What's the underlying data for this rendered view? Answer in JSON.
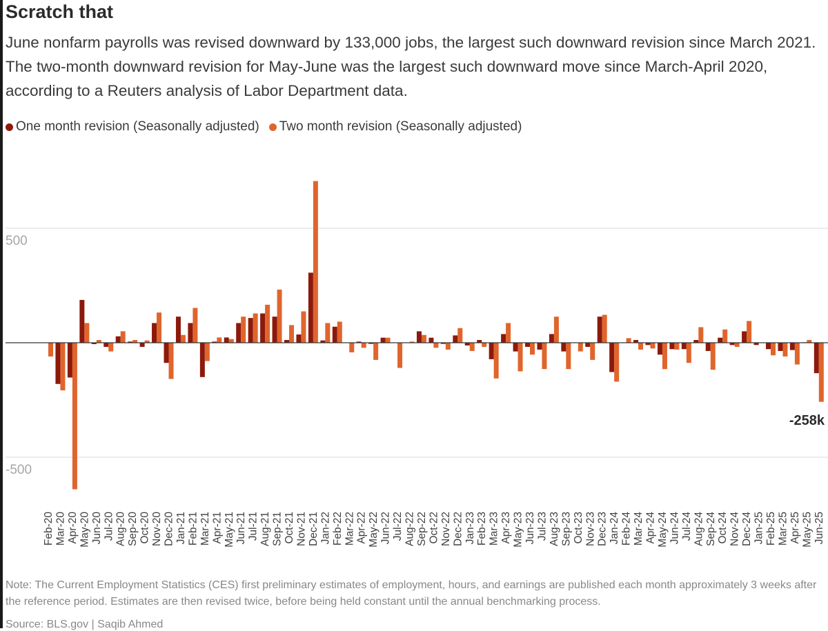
{
  "title": "Scratch that",
  "subtitle": "June nonfarm payrolls was revised downward by 133,000 jobs, the largest such downward revision since March 2021. The two-month downward revision for May-June was the largest such downward move since March-April 2020, according to a Reuters analysis of Labor Department data.",
  "note": "Note: The Current Employment Statistics (CES) first preliminary estimates of employment, hours, and earnings are published each month approximately 3 weeks after the reference period. Estimates are then revised twice, before being held constant until the annual benchmarking process.",
  "source": "Source: BLS.gov | Saqib Ahmed",
  "colors": {
    "one_month": "#8b1a0c",
    "two_month": "#e0652c",
    "grid": "#d9d9d9",
    "axis_text": "#a6a6a6"
  },
  "chart_data": {
    "type": "bar",
    "ylim": [
      -600,
      720
    ],
    "yticks": [
      {
        "value": 500,
        "label": "500"
      },
      {
        "value": -500,
        "label": "-500"
      }
    ],
    "grid": true,
    "legend_position": "top-left",
    "annotation": {
      "label": "-258k",
      "category": "Jun-25",
      "value": -258
    },
    "categories": [
      "Feb-20",
      "Mar-20",
      "Apr-20",
      "May-20",
      "Jun-20",
      "Jul-20",
      "Aug-20",
      "Sep-20",
      "Oct-20",
      "Nov-20",
      "Dec-20",
      "Jan-21",
      "Feb-21",
      "Mar-21",
      "Apr-21",
      "May-21",
      "Jun-21",
      "Jul-21",
      "Aug-21",
      "Sep-21",
      "Oct-21",
      "Nov-21",
      "Dec-21",
      "Jan-22",
      "Feb-22",
      "Mar-22",
      "Apr-22",
      "May-22",
      "Jun-22",
      "Jul-22",
      "Aug-22",
      "Sep-22",
      "Oct-22",
      "Nov-22",
      "Dec-22",
      "Jan-23",
      "Feb-23",
      "Mar-23",
      "Apr-23",
      "May-23",
      "Jun-23",
      "Jul-23",
      "Aug-23",
      "Sep-23",
      "Oct-23",
      "Nov-23",
      "Dec-23",
      "Jan-24",
      "Feb-24",
      "Mar-24",
      "Apr-24",
      "May-24",
      "Jun-24",
      "Jul-24",
      "Aug-24",
      "Sep-24",
      "Oct-24",
      "Nov-24",
      "Dec-24",
      "Jan-25",
      "Feb-25",
      "Mar-25",
      "Apr-25",
      "May-25",
      "Jun-25"
    ],
    "series": [
      {
        "name": "One month revision (Seasonally adjusted)",
        "values": [
          0,
          -180,
          -152,
          187,
          -6,
          -18,
          28,
          5,
          -18,
          86,
          -88,
          114,
          86,
          -150,
          5,
          23,
          86,
          108,
          128,
          114,
          12,
          36,
          306,
          10,
          70,
          0,
          5,
          -5,
          22,
          0,
          0,
          50,
          22,
          -5,
          32,
          -12,
          12,
          -72,
          38,
          -38,
          -18,
          -30,
          38,
          -38,
          0,
          -18,
          114,
          -128,
          0,
          12,
          -10,
          -52,
          -28,
          -28,
          12,
          -36,
          22,
          -10,
          50,
          -10,
          -28,
          -36,
          -32,
          2,
          -133
        ]
      },
      {
        "name": "Two month revision (Seasonally adjusted)",
        "values": [
          -60,
          -208,
          -640,
          86,
          12,
          -38,
          50,
          12,
          10,
          132,
          -158,
          34,
          152,
          -80,
          23,
          16,
          114,
          128,
          166,
          232,
          77,
          137,
          706,
          86,
          92,
          -42,
          -22,
          -75,
          22,
          -110,
          5,
          34,
          -22,
          -30,
          64,
          -36,
          -18,
          -156,
          86,
          -125,
          -52,
          -115,
          114,
          -115,
          -38,
          -75,
          122,
          -170,
          20,
          -30,
          -25,
          -115,
          -30,
          -88,
          68,
          -118,
          58,
          -18,
          95,
          0,
          -55,
          -60,
          -95,
          12,
          -258
        ]
      }
    ]
  }
}
